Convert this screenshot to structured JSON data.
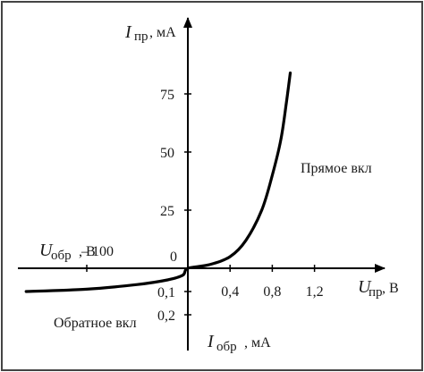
{
  "chart_data": {
    "type": "line",
    "title": "",
    "x_axis": {
      "symbol": "U",
      "subscript": "пр",
      "unit": ", B",
      "tick_labels": [
        "0,4",
        "0,8",
        "1,2"
      ],
      "ticks": [
        0.4,
        0.8,
        1.2
      ]
    },
    "y_axis": {
      "symbol": "I",
      "subscript": "пр",
      "unit": ", мА",
      "tick_labels": [
        "25",
        "50",
        "75"
      ],
      "ticks": [
        25,
        50,
        75
      ]
    },
    "reverse_x_axis": {
      "symbol": "U",
      "subscript": "обр",
      "unit": ", B",
      "tick_labels": [
        "– 100"
      ],
      "ticks": [
        -100
      ]
    },
    "reverse_y_axis": {
      "symbol": "I",
      "subscript": "обр",
      "unit": ", мА",
      "tick_labels": [
        "0,1",
        "0,2"
      ],
      "ticks": [
        0.1,
        0.2
      ]
    },
    "origin_label": "0",
    "region_labels": {
      "forward": "Прямое вкл",
      "reverse": "Обратное вкл"
    },
    "series": [
      {
        "points_forward": [
          {
            "u": 0.0,
            "i": 0
          },
          {
            "u": 0.2,
            "i": 1.5
          },
          {
            "u": 0.4,
            "i": 5
          },
          {
            "u": 0.55,
            "i": 12
          },
          {
            "u": 0.7,
            "i": 25
          },
          {
            "u": 0.8,
            "i": 40
          },
          {
            "u": 0.88,
            "i": 55
          },
          {
            "u": 0.93,
            "i": 70
          },
          {
            "u": 0.97,
            "i": 84
          }
        ],
        "points_reverse": [
          {
            "u": -160,
            "i": -0.1
          },
          {
            "u": -100,
            "i": -0.09
          },
          {
            "u": -50,
            "i": -0.07
          },
          {
            "u": -20,
            "i": -0.05
          },
          {
            "u": -5,
            "i": -0.03
          },
          {
            "u": 0,
            "i": 0
          }
        ]
      }
    ]
  }
}
